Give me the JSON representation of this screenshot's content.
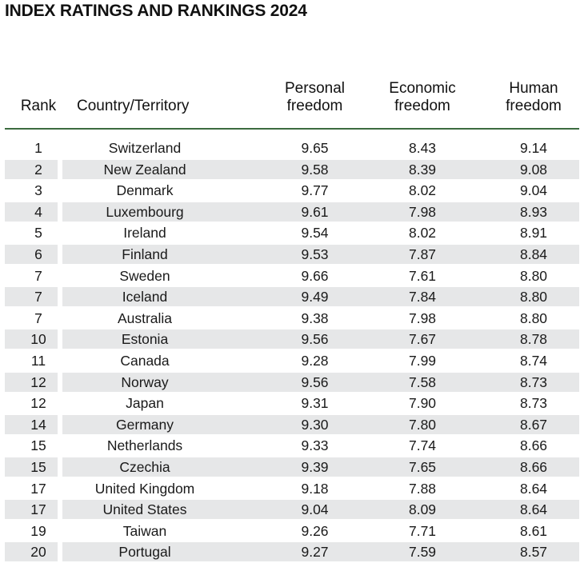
{
  "title": "INDEX RATINGS AND RANKINGS 2024",
  "columns": {
    "rank": "Rank",
    "country": "Country/Territory",
    "personal": "Personal\nfreedom",
    "economic": "Economic\nfreedom",
    "human": "Human\nfreedom"
  },
  "rows": [
    {
      "rank": "1",
      "country": "Switzerland",
      "personal": "9.65",
      "economic": "8.43",
      "human": "9.14"
    },
    {
      "rank": "2",
      "country": "New Zealand",
      "personal": "9.58",
      "economic": "8.39",
      "human": "9.08"
    },
    {
      "rank": "3",
      "country": "Denmark",
      "personal": "9.77",
      "economic": "8.02",
      "human": "9.04"
    },
    {
      "rank": "4",
      "country": "Luxembourg",
      "personal": "9.61",
      "economic": "7.98",
      "human": "8.93"
    },
    {
      "rank": "5",
      "country": "Ireland",
      "personal": "9.54",
      "economic": "8.02",
      "human": "8.91"
    },
    {
      "rank": "6",
      "country": "Finland",
      "personal": "9.53",
      "economic": "7.87",
      "human": "8.84"
    },
    {
      "rank": "7",
      "country": "Sweden",
      "personal": "9.66",
      "economic": "7.61",
      "human": "8.80"
    },
    {
      "rank": "7",
      "country": "Iceland",
      "personal": "9.49",
      "economic": "7.84",
      "human": "8.80"
    },
    {
      "rank": "7",
      "country": "Australia",
      "personal": "9.38",
      "economic": "7.98",
      "human": "8.80"
    },
    {
      "rank": "10",
      "country": "Estonia",
      "personal": "9.56",
      "economic": "7.67",
      "human": "8.78"
    },
    {
      "rank": "11",
      "country": "Canada",
      "personal": "9.28",
      "economic": "7.99",
      "human": "8.74"
    },
    {
      "rank": "12",
      "country": "Norway",
      "personal": "9.56",
      "economic": "7.58",
      "human": "8.73"
    },
    {
      "rank": "12",
      "country": "Japan",
      "personal": "9.31",
      "economic": "7.90",
      "human": "8.73"
    },
    {
      "rank": "14",
      "country": "Germany",
      "personal": "9.30",
      "economic": "7.80",
      "human": "8.67"
    },
    {
      "rank": "15",
      "country": "Netherlands",
      "personal": "9.33",
      "economic": "7.74",
      "human": "8.66"
    },
    {
      "rank": "15",
      "country": "Czechia",
      "personal": "9.39",
      "economic": "7.65",
      "human": "8.66"
    },
    {
      "rank": "17",
      "country": "United Kingdom",
      "personal": "9.18",
      "economic": "7.88",
      "human": "8.64"
    },
    {
      "rank": "17",
      "country": "United States",
      "personal": "9.04",
      "economic": "8.09",
      "human": "8.64"
    },
    {
      "rank": "19",
      "country": "Taiwan",
      "personal": "9.26",
      "economic": "7.71",
      "human": "8.61"
    },
    {
      "rank": "20",
      "country": "Portugal",
      "personal": "9.27",
      "economic": "7.59",
      "human": "8.57"
    }
  ]
}
